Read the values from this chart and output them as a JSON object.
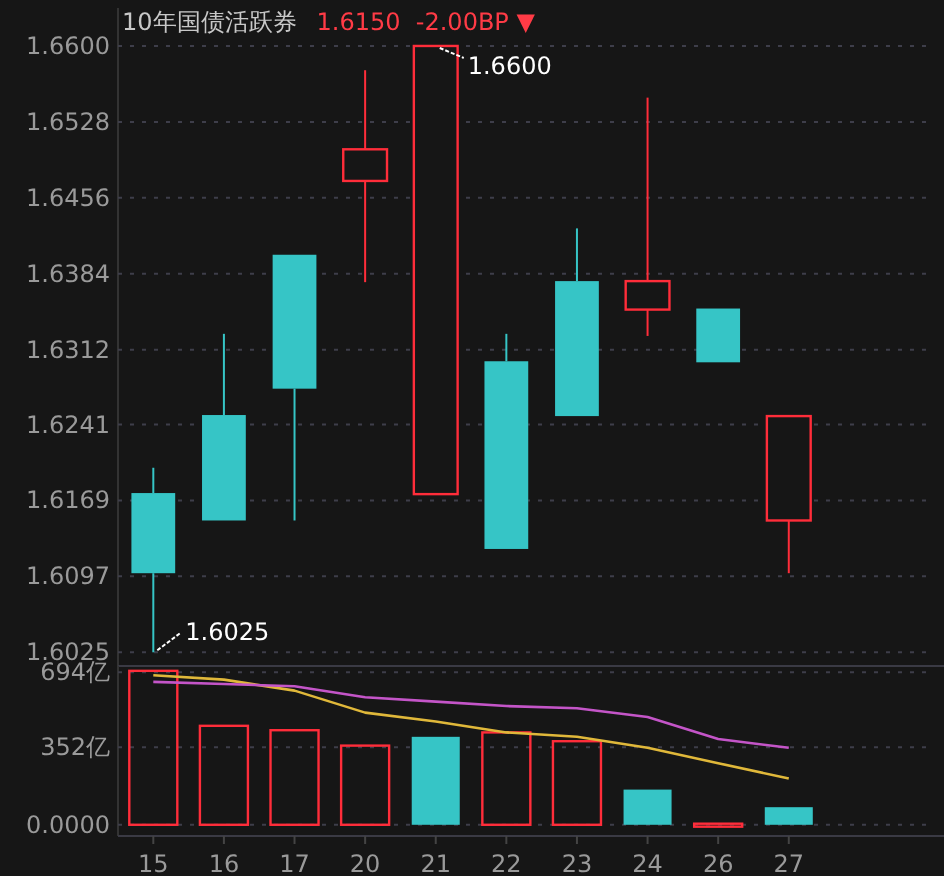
{
  "chart_data": [
    {
      "type": "candlestick",
      "title": "10年国债活跃券",
      "subtitle": "1.6150  -2.00BP ▼",
      "categories": [
        "15",
        "16",
        "17",
        "20",
        "21",
        "22",
        "23",
        "24",
        "26",
        "27"
      ],
      "ohlc": [
        [
          1.61,
          1.62,
          1.6025,
          1.6176
        ],
        [
          1.615,
          1.6327,
          1.615,
          1.625
        ],
        [
          1.6275,
          1.6402,
          1.615,
          1.6402
        ],
        [
          1.6502,
          1.6577,
          1.6376,
          1.6472
        ],
        [
          1.66,
          1.66,
          1.6175,
          1.6175
        ],
        [
          1.6123,
          1.6327,
          1.6123,
          1.6301
        ],
        [
          1.6249,
          1.6427,
          1.6249,
          1.6377
        ],
        [
          1.6377,
          1.6551,
          1.6325,
          1.635
        ],
        [
          1.63,
          1.6351,
          1.63,
          1.6351
        ],
        [
          1.6249,
          1.6249,
          1.61,
          1.615
        ]
      ],
      "colors": [
        "#36c5c6",
        "#36c5c6",
        "#36c5c6",
        "#ff2d3a",
        "#ff2d3a",
        "#36c5c6",
        "#36c5c6",
        "#ff2d3a",
        "#36c5c6",
        "#ff2d3a"
      ],
      "ylim": [
        1.6012,
        1.6636
      ],
      "yticks": [
        1.6025,
        1.6097,
        1.6169,
        1.6241,
        1.6312,
        1.6384,
        1.6456,
        1.6528,
        {
          "value": 1.66,
          "label": "1.6600"
        }
      ],
      "annotations": [
        {
          "text": "1.6600",
          "x": "21",
          "y": 1.66
        },
        {
          "text": "1.6025",
          "x": "15",
          "y": 1.6025
        }
      ],
      "grid": "y",
      "tick_labels": "y"
    },
    {
      "type": "bar",
      "categories": [
        "15",
        "16",
        "17",
        "20",
        "21",
        "22",
        "23",
        "24",
        "26",
        "27"
      ],
      "series": [
        {
          "type": "bar",
          "colors": [
            "#ff2d3a",
            "#ff2d3a",
            "#ff2d3a",
            "#ff2d3a",
            "#36c5c6",
            "#ff2d3a",
            "#ff2d3a",
            "#36c5c6",
            "#ff2d3a",
            "#36c5c6"
          ],
          "values": [
            700,
            450,
            430,
            360,
            400,
            420,
            380,
            160,
            5,
            80
          ]
        },
        {
          "type": "line",
          "color": "#e0b83a",
          "values": [
            680,
            660,
            610,
            510,
            470,
            420,
            400,
            350,
            280,
            210
          ]
        },
        {
          "type": "line",
          "color": "#c455c8",
          "values": [
            650,
            640,
            630,
            580,
            560,
            540,
            530,
            490,
            390,
            350
          ]
        }
      ],
      "ylim": [
        -51,
        722
      ],
      "yticks": [
        {
          "value": 0,
          "label": "0.0000"
        },
        {
          "value": 352,
          "label": "352亿"
        },
        {
          "value": 694,
          "label": "694亿"
        }
      ],
      "grid": "y"
    }
  ]
}
